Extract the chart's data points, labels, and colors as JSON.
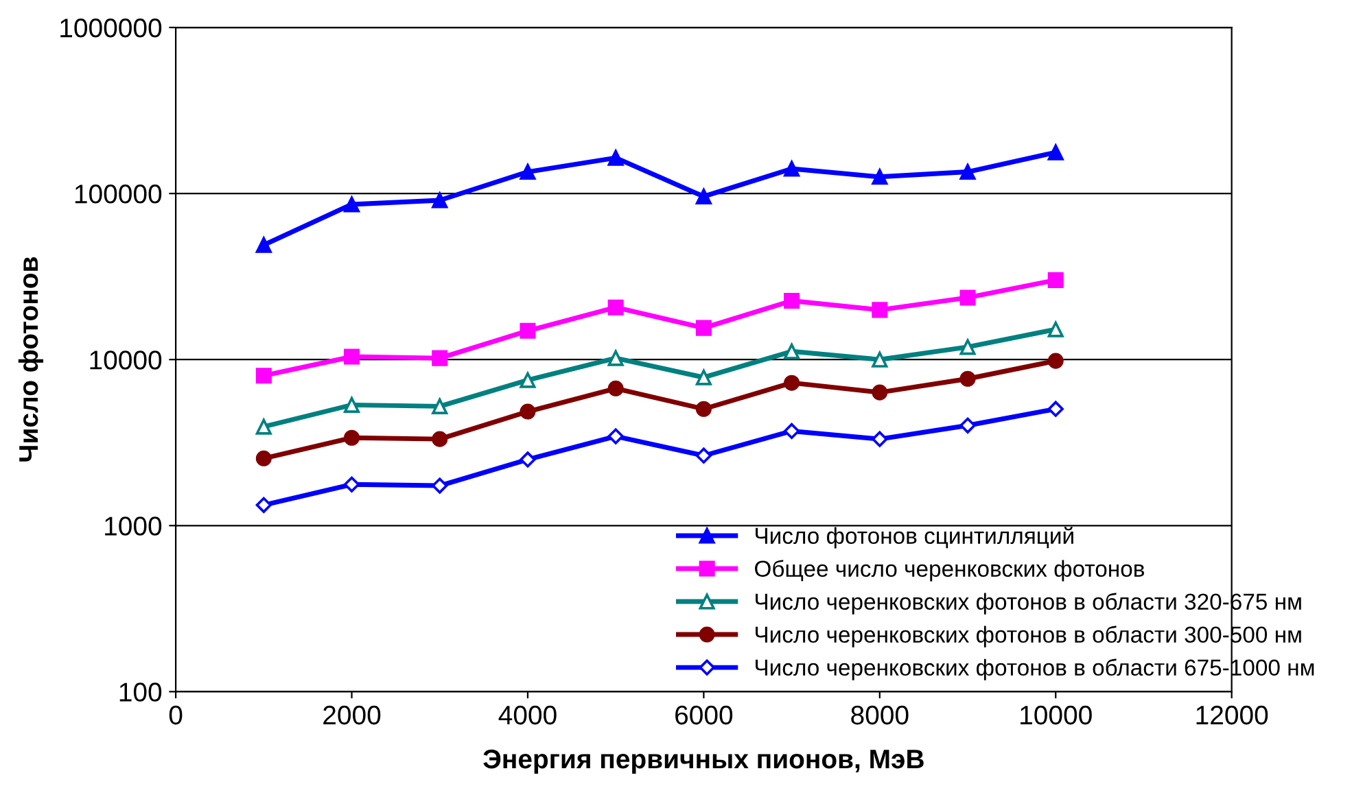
{
  "chart_data": {
    "type": "line",
    "xlabel": "Энергия первичных пионов, МэВ",
    "ylabel": "Число фотонов",
    "log": "y",
    "grid": "y",
    "legend": "bottom right",
    "x": [
      1000,
      2000,
      3000,
      4000,
      5000,
      6000,
      7000,
      8000,
      9000,
      10000
    ],
    "xlim": [
      0,
      12000
    ],
    "xticks": [
      0,
      2000,
      4000,
      6000,
      8000,
      10000,
      12000
    ],
    "ylim": [
      100,
      1000000
    ],
    "yticks": [
      100,
      1000,
      10000,
      100000,
      1000000
    ],
    "series": [
      {
        "name": "Число фотонов сцинтилляций",
        "color": "#0000ff",
        "marker": "triangle",
        "values": [
          49000,
          86000,
          91000,
          135000,
          164000,
          96000,
          141000,
          126000,
          135000,
          177000
        ]
      },
      {
        "name": "Общее число черенковских фотонов",
        "color": "#ff00ff",
        "marker": "square",
        "values": [
          8000,
          10400,
          10200,
          14900,
          20600,
          15500,
          22600,
          19900,
          23600,
          30100
        ]
      },
      {
        "name": "Число черенковских фотонов в области 320-675 нм",
        "color": "#008080",
        "marker": "triangle_open",
        "values": [
          3940,
          5330,
          5230,
          7520,
          10200,
          7810,
          11200,
          10000,
          11900,
          15200
        ]
      },
      {
        "name": "Число черенковских фотонов в области 300-500 нм",
        "color": "#800000",
        "marker": "circle",
        "values": [
          2540,
          3380,
          3320,
          4860,
          6700,
          5040,
          7240,
          6340,
          7660,
          9820
        ]
      },
      {
        "name": "Число черенковских фотонов в области 675-1000 нм",
        "color": "#0000ff",
        "marker": "diamond_open",
        "values": [
          1330,
          1770,
          1740,
          2500,
          3450,
          2640,
          3710,
          3320,
          4010,
          5040
        ]
      }
    ]
  }
}
